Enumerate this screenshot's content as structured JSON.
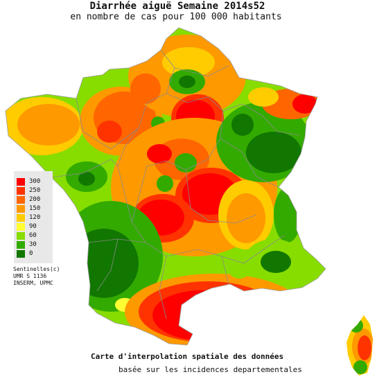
{
  "header": {
    "title": "Diarrhée aiguë Semaine 2014s52",
    "subtitle": "en nombre de cas pour 100 000 habitants"
  },
  "legend": {
    "items": [
      {
        "label": "300",
        "color": "#ff0000"
      },
      {
        "label": "250",
        "color": "#ff3300"
      },
      {
        "label": "200",
        "color": "#ff6600"
      },
      {
        "label": "150",
        "color": "#ff9900"
      },
      {
        "label": "120",
        "color": "#ffcc00"
      },
      {
        "label": "90",
        "color": "#ffff33"
      },
      {
        "label": "60",
        "color": "#88dd00"
      },
      {
        "label": "30",
        "color": "#33aa00"
      },
      {
        "label": "0",
        "color": "#117700"
      }
    ]
  },
  "credits": {
    "line1": "Sentinelles(c)",
    "line2": "UMR S 1136",
    "line3": "INSERM, UPMC"
  },
  "footer": {
    "caption": "Carte d'interpolation spatiale des données",
    "subcaption": "basée sur les incidences departementales"
  }
}
